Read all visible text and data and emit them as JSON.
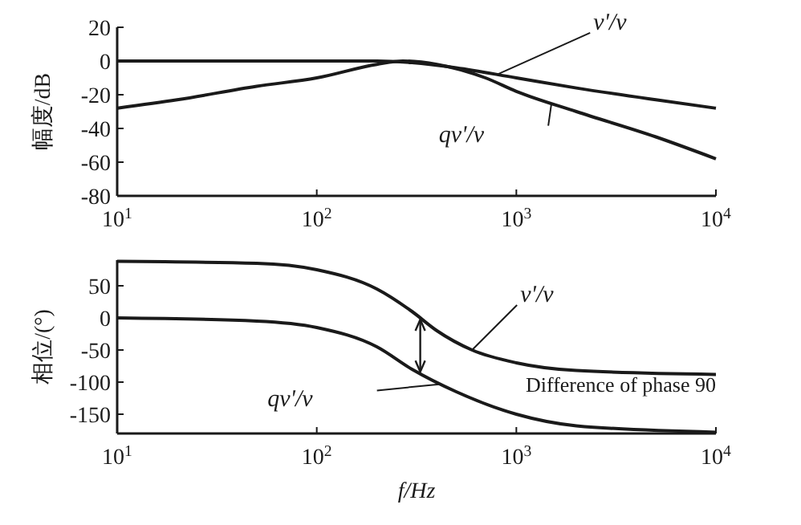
{
  "chart_data": [
    {
      "type": "line",
      "ylabel": "幅度/dB",
      "xlim": [
        10,
        10000
      ],
      "log": "x",
      "ylim": [
        -80,
        20
      ],
      "yticks": [
        20,
        0,
        -20,
        -40,
        -60,
        -80
      ],
      "xticks": [
        {
          "value": 10,
          "label": "10$^{1}$"
        },
        {
          "value": 100,
          "label": "10$^{2}$"
        },
        {
          "value": 1000,
          "label": "10$^{3}$"
        },
        {
          "value": 10000,
          "label": "10$^{4}$"
        }
      ],
      "grid": false,
      "series": [
        {
          "name": "v'/v",
          "color": "#1a1a1a",
          "x": [
            10,
            30,
            100,
            200,
            300,
            500,
            1000,
            2000,
            5000,
            10000
          ],
          "values": [
            0,
            0,
            0,
            0,
            -1,
            -4,
            -10,
            -16,
            -23,
            -28
          ]
        },
        {
          "name": "qv'/v",
          "color": "#1a1a1a",
          "x": [
            10,
            20,
            50,
            100,
            200,
            270,
            400,
            700,
            1000,
            2000,
            5000,
            10000
          ],
          "values": [
            -28,
            -23,
            -15,
            -10,
            -2,
            0,
            -2,
            -10,
            -18,
            -30,
            -45,
            -58
          ]
        }
      ]
    },
    {
      "type": "line",
      "ylabel": "相位/(°)",
      "xlabel": "f/Hz",
      "xlim": [
        10,
        10000
      ],
      "log": "x",
      "ylim": [
        -180,
        90
      ],
      "yticks": [
        50,
        0,
        -50,
        -100,
        -150
      ],
      "xticks": [
        {
          "value": 10,
          "label": "10$^{1}$"
        },
        {
          "value": 100,
          "label": "10$^{2}$"
        },
        {
          "value": 1000,
          "label": "10$^{3}$"
        },
        {
          "value": 10000,
          "label": "10$^{4}$"
        }
      ],
      "grid": false,
      "annotations": [
        "Difference of phase 90"
      ],
      "series": [
        {
          "name": "v'/v",
          "color": "#1a1a1a",
          "x": [
            10,
            50,
            100,
            200,
            300,
            400,
            600,
            1000,
            2000,
            10000
          ],
          "values": [
            88,
            85,
            75,
            45,
            10,
            -20,
            -50,
            -70,
            -82,
            -88
          ]
        },
        {
          "name": "qv'/v",
          "color": "#1a1a1a",
          "x": [
            10,
            50,
            100,
            200,
            300,
            500,
            1000,
            2000,
            10000
          ],
          "values": [
            0,
            -5,
            -15,
            -45,
            -80,
            -115,
            -150,
            -168,
            -178
          ]
        }
      ]
    }
  ]
}
